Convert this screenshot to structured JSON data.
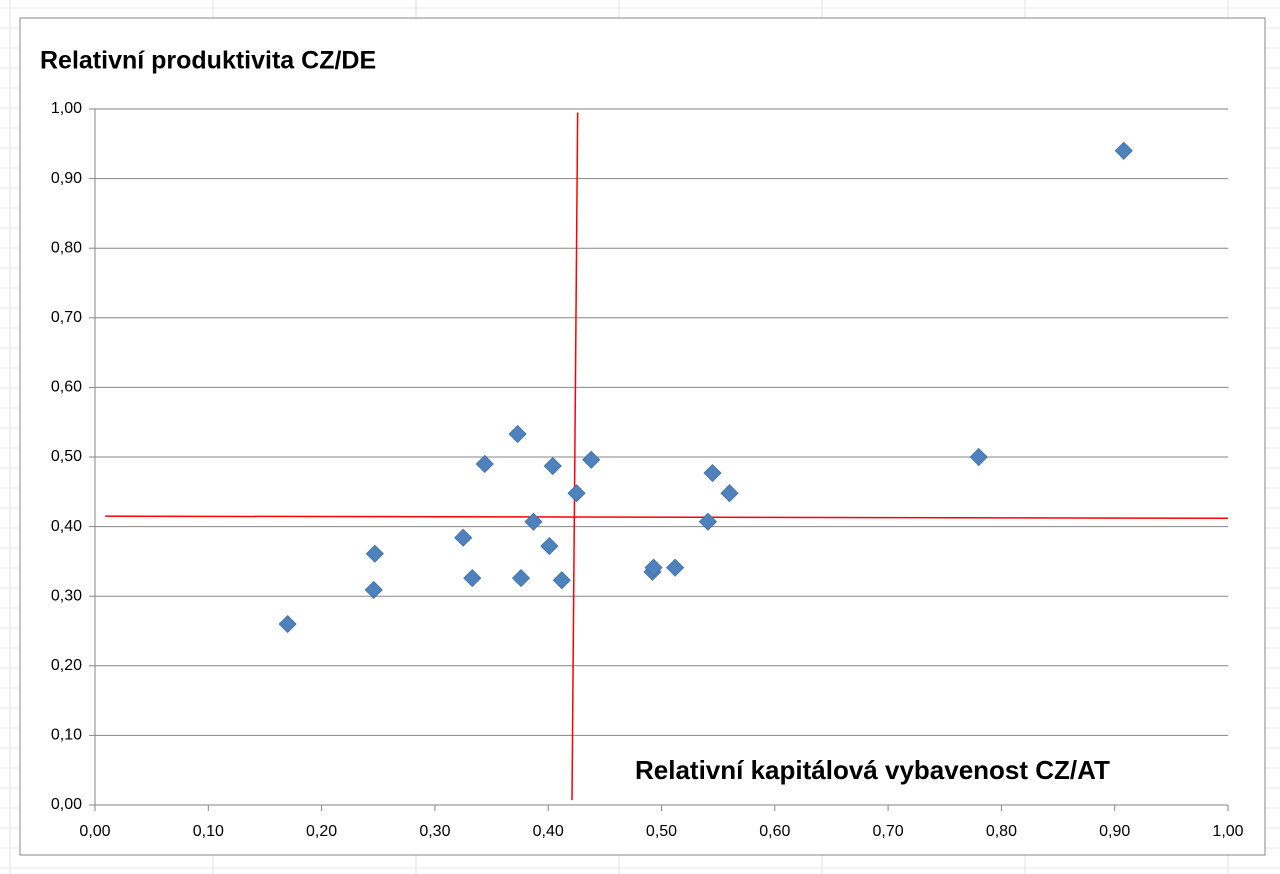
{
  "chart_data": {
    "type": "scatter",
    "title": "Relativní produktivita CZ/DE",
    "x_label": "Relativní kapitálová vybavenost CZ/AT",
    "x": [
      0.17,
      0.246,
      0.247,
      0.325,
      0.333,
      0.344,
      0.373,
      0.376,
      0.387,
      0.401,
      0.404,
      0.412,
      0.425,
      0.438,
      0.492,
      0.493,
      0.512,
      0.541,
      0.545,
      0.56,
      0.78,
      0.908
    ],
    "values": [
      0.26,
      0.309,
      0.361,
      0.384,
      0.326,
      0.49,
      0.533,
      0.326,
      0.407,
      0.372,
      0.487,
      0.323,
      0.448,
      0.496,
      0.335,
      0.341,
      0.341,
      0.407,
      0.477,
      0.448,
      0.5,
      0.94
    ],
    "color": "#4f81bd",
    "lines": [
      {
        "color": "#ff0000",
        "x": [
          0.426,
          0.421
        ],
        "values": [
          0.995,
          0.007
        ]
      },
      {
        "color": "#ff0000",
        "x": [
          0.009,
          1.0
        ],
        "values": [
          0.415,
          0.412
        ]
      }
    ],
    "xlim": [
      0,
      1
    ],
    "ylim": [
      0,
      1
    ],
    "xticks": [
      {
        "value": 0,
        "label": "0,00"
      },
      {
        "value": 0.1,
        "label": "0,10"
      },
      {
        "value": 0.2,
        "label": "0,20"
      },
      {
        "value": 0.3,
        "label": "0,30"
      },
      {
        "value": 0.4,
        "label": "0,40"
      },
      {
        "value": 0.5,
        "label": "0,50"
      },
      {
        "value": 0.6,
        "label": "0,60"
      },
      {
        "value": 0.7,
        "label": "0,70"
      },
      {
        "value": 0.8,
        "label": "0,80"
      },
      {
        "value": 0.9,
        "label": "0,90"
      },
      {
        "value": 1,
        "label": "1,00"
      }
    ],
    "yticks": [
      {
        "value": 0,
        "label": "0,00"
      },
      {
        "value": 0.1,
        "label": "0,10"
      },
      {
        "value": 0.2,
        "label": "0,20"
      },
      {
        "value": 0.3,
        "label": "0,30"
      },
      {
        "value": 0.4,
        "label": "0,40"
      },
      {
        "value": 0.5,
        "label": "0,50"
      },
      {
        "value": 0.6,
        "label": "0,60"
      },
      {
        "value": 0.7,
        "label": "0,70"
      },
      {
        "value": 0.8,
        "label": "0,80"
      },
      {
        "value": 0.9,
        "label": "0,90"
      },
      {
        "value": 1,
        "label": "1,00"
      }
    ],
    "grid": true
  }
}
